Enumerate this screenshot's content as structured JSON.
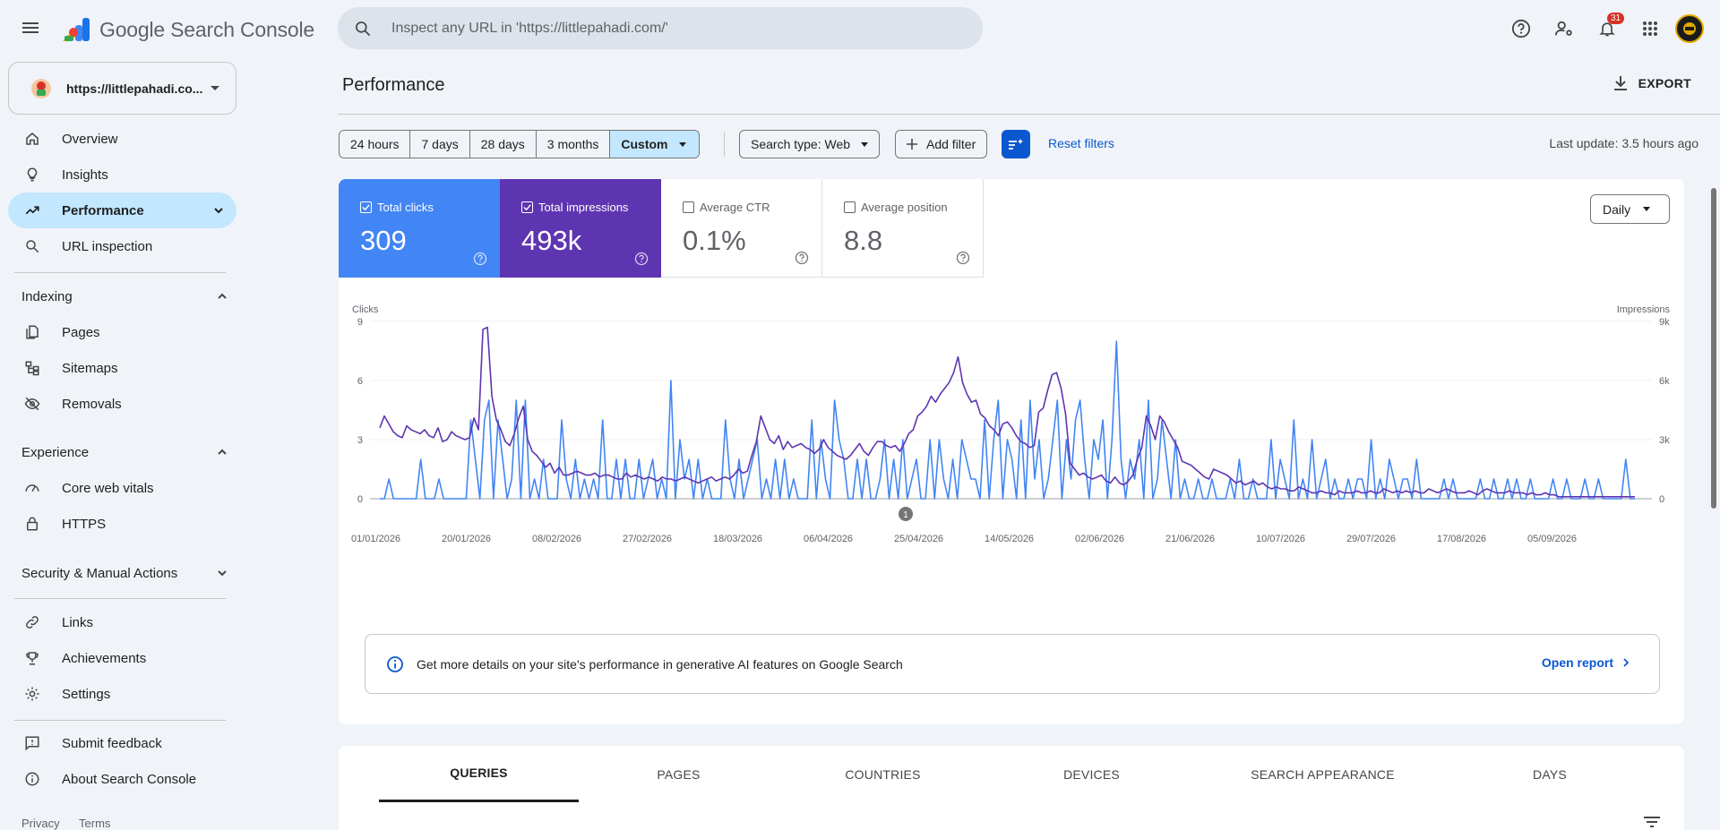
{
  "app": {
    "title": "Google Search Console",
    "search_placeholder": "Inspect any URL in 'https://littlepahadi.com/'",
    "notification_count": "31",
    "accent": "#0b57d0"
  },
  "property": {
    "label": "https://littlepahadi.co..."
  },
  "sidebar": {
    "items": [
      {
        "label": "Overview",
        "icon": "home-icon"
      },
      {
        "label": "Insights",
        "icon": "lightbulb-icon"
      },
      {
        "label": "Performance",
        "icon": "trending-up-icon",
        "active": true
      },
      {
        "label": "URL inspection",
        "icon": "search-icon"
      }
    ],
    "indexing": {
      "heading": "Indexing",
      "items": [
        {
          "label": "Pages",
          "icon": "pages-icon"
        },
        {
          "label": "Sitemaps",
          "icon": "sitemap-icon"
        },
        {
          "label": "Removals",
          "icon": "eye-off-icon"
        }
      ]
    },
    "experience": {
      "heading": "Experience",
      "items": [
        {
          "label": "Core web vitals",
          "icon": "gauge-icon"
        },
        {
          "label": "HTTPS",
          "icon": "lock-icon"
        }
      ]
    },
    "security": {
      "heading": "Security & Manual Actions"
    },
    "more": [
      {
        "label": "Links",
        "icon": "link-icon"
      },
      {
        "label": "Achievements",
        "icon": "trophy-icon"
      },
      {
        "label": "Settings",
        "icon": "gear-icon"
      }
    ],
    "bottom": [
      {
        "label": "Submit feedback",
        "icon": "feedback-icon"
      },
      {
        "label": "About Search Console",
        "icon": "info-icon"
      }
    ],
    "footer": {
      "privacy": "Privacy",
      "terms": "Terms"
    }
  },
  "main": {
    "title": "Performance",
    "export_label": "EXPORT",
    "date_ranges": [
      "24 hours",
      "7 days",
      "28 days",
      "3 months",
      "Custom"
    ],
    "selected_range": "Custom",
    "search_type": "Search type: Web",
    "add_filter": "Add filter",
    "reset_filters": "Reset filters",
    "last_update": "Last update: 3.5 hours ago",
    "granularity": "Daily"
  },
  "metrics": {
    "clicks": {
      "label": "Total clicks",
      "value": "309",
      "checked": true,
      "color": "#4285f4"
    },
    "impressions": {
      "label": "Total impressions",
      "value": "493k",
      "checked": true,
      "color": "#5e35b1"
    },
    "ctr": {
      "label": "Average CTR",
      "value": "0.1%",
      "checked": false
    },
    "position": {
      "label": "Average position",
      "value": "8.8",
      "checked": false
    }
  },
  "chart_data": {
    "type": "line",
    "xlabel": "",
    "ylabel": "Clicks",
    "y2label": "Impressions",
    "ylim": [
      0,
      9
    ],
    "y2lim": [
      0,
      9000
    ],
    "yticks": [
      "0",
      "3",
      "6",
      "9"
    ],
    "y2ticks": [
      "0",
      "3k",
      "6k",
      "9k"
    ],
    "xticks": [
      "01/01/2026",
      "20/01/2026",
      "08/02/2026",
      "27/02/2026",
      "18/03/2026",
      "06/04/2026",
      "25/04/2026",
      "14/05/2026",
      "02/06/2026",
      "21/06/2026",
      "10/07/2026",
      "29/07/2026",
      "17/08/2026",
      "05/09/2026"
    ],
    "annotation": {
      "label": "1",
      "date": "25/04/2026"
    },
    "grid": true,
    "legend": "none",
    "x_start": "01/01/2026",
    "x_end": "20/09/2026",
    "series": [
      {
        "name": "Clicks",
        "color": "#4285f4",
        "axis": "left",
        "values": [
          0,
          0,
          1,
          0,
          0,
          0,
          0,
          0,
          0,
          2,
          0,
          0,
          0,
          1,
          0,
          0,
          0,
          0,
          0,
          0,
          4,
          2,
          0,
          4,
          5,
          0,
          4,
          2,
          0,
          1,
          5,
          0,
          5,
          0,
          1,
          0,
          2,
          0,
          0,
          0,
          4,
          1,
          0,
          2,
          0,
          1,
          0,
          1,
          0,
          4,
          0,
          0,
          2,
          0,
          2,
          0,
          0,
          2,
          0,
          1,
          2,
          0,
          1,
          0,
          6,
          0,
          3,
          1,
          2,
          0,
          2,
          0,
          1,
          0,
          0,
          0,
          4,
          1,
          0,
          2,
          0,
          1,
          2,
          3,
          0,
          1,
          0,
          2,
          0,
          2,
          0,
          1,
          0,
          0,
          0,
          4,
          0,
          3,
          1,
          0,
          5,
          3,
          2,
          0,
          0,
          2,
          0,
          2,
          0,
          0,
          1,
          3,
          0,
          2,
          0,
          3,
          0,
          1,
          2,
          0,
          0,
          3,
          0,
          3,
          1,
          0,
          2,
          0,
          3,
          2,
          1,
          1,
          0,
          4,
          0,
          3,
          5,
          0,
          3,
          2,
          0,
          4,
          0,
          5,
          1,
          3,
          0,
          1,
          3,
          5,
          0,
          3,
          1,
          4,
          5,
          2,
          0,
          3,
          2,
          4,
          0,
          3,
          8,
          2,
          0,
          2,
          1,
          3,
          0,
          5,
          0,
          1,
          4,
          2,
          0,
          3,
          0,
          1,
          0,
          0,
          1,
          0,
          0,
          1,
          0,
          0,
          0,
          1,
          0,
          2,
          0,
          0,
          1,
          0,
          0,
          0,
          3,
          0,
          2,
          1,
          0,
          4,
          0,
          1,
          0,
          3,
          0,
          1,
          2,
          0,
          1,
          0,
          0,
          1,
          0,
          1,
          1,
          0,
          3,
          0,
          1,
          0,
          2,
          1,
          0,
          1,
          1,
          0,
          2,
          0,
          0,
          0,
          0,
          0,
          1,
          0,
          1,
          0,
          0,
          0,
          0,
          0,
          1,
          0,
          0,
          1,
          0,
          0,
          1,
          0,
          1,
          0,
          0,
          1,
          0,
          0,
          0,
          0,
          1,
          0,
          0,
          1,
          0,
          0,
          0,
          1,
          0,
          0,
          1,
          0,
          0,
          0,
          0,
          0,
          2,
          0,
          0
        ],
        "note": "daily series"
      },
      {
        "name": "Impressions",
        "color": "#5e35b1",
        "axis": "right",
        "values": [
          3600,
          4200,
          3800,
          3400,
          3200,
          3100,
          3700,
          3500,
          3400,
          3300,
          3500,
          3200,
          3100,
          3600,
          2900,
          3000,
          3400,
          3200,
          3100,
          3000,
          3100,
          4100,
          3500,
          8600,
          8700,
          5200,
          4000,
          3500,
          2900,
          2700,
          3300,
          4100,
          4700,
          3000,
          2400,
          2200,
          1900,
          1600,
          1800,
          1300,
          1600,
          1200,
          1200,
          1300,
          1400,
          1300,
          1200,
          1200,
          1300,
          1100,
          1200,
          1200,
          1100,
          1000,
          1000,
          1300,
          1100,
          1200,
          1100,
          1000,
          1100,
          1000,
          900,
          1100,
          1000,
          1000,
          900,
          1000,
          1100,
          1000,
          900,
          800,
          900,
          1000,
          1100,
          900,
          1000,
          1100,
          1000,
          1200,
          1500,
          1300,
          1400,
          2200,
          2900,
          4200,
          3600,
          3000,
          2800,
          3200,
          2500,
          2900,
          2600,
          2700,
          2800,
          2600,
          2500,
          2300,
          2500,
          3000,
          2600,
          2400,
          2200,
          2100,
          2000,
          2200,
          2500,
          2800,
          2400,
          2200,
          2600,
          2900,
          2900,
          2700,
          2600,
          2700,
          2400,
          2800,
          3300,
          3500,
          4200,
          4400,
          4700,
          5200,
          4900,
          5300,
          5600,
          5900,
          6400,
          7200,
          5900,
          5300,
          4900,
          5000,
          4300,
          4100,
          3700,
          3500,
          3200,
          3800,
          3900,
          3600,
          3200,
          2900,
          2800,
          2600,
          2700,
          4400,
          4600,
          5500,
          6300,
          6400,
          5600,
          4300,
          1800,
          1500,
          1200,
          1300,
          1100,
          1000,
          1100,
          1200,
          900,
          800,
          1100,
          800,
          700,
          900,
          1200,
          2000,
          2600,
          4200,
          3700,
          3000,
          4200,
          3900,
          3400,
          3000,
          2600,
          1900,
          1800,
          1700,
          1500,
          1300,
          1100,
          1000,
          1500,
          1400,
          1300,
          1200,
          1000,
          800,
          900,
          700,
          800,
          900,
          700,
          800,
          600,
          500,
          600,
          500,
          500,
          400,
          400,
          600,
          500,
          400,
          300,
          300,
          400,
          300,
          300,
          200,
          400,
          300,
          300,
          300,
          400,
          300,
          300,
          400,
          300,
          300,
          500,
          400,
          300,
          400,
          300,
          400,
          300,
          400,
          300,
          300,
          500,
          400,
          300,
          400,
          500,
          400,
          300,
          300,
          300,
          400,
          300,
          200,
          400,
          500,
          400,
          300,
          300,
          300,
          400,
          300,
          300,
          300,
          200,
          300,
          200,
          200,
          300,
          200,
          200,
          100,
          100,
          100,
          100,
          100,
          100,
          100,
          100,
          100,
          100,
          100,
          100,
          100,
          100,
          100,
          100,
          100,
          100
        ]
      }
    ]
  },
  "ai_banner": {
    "text": "Get more details on your site's performance in generative AI features on Google Search",
    "link": "Open report"
  },
  "tabs": [
    "QUERIES",
    "PAGES",
    "COUNTRIES",
    "DEVICES",
    "SEARCH APPEARANCE",
    "DAYS"
  ]
}
